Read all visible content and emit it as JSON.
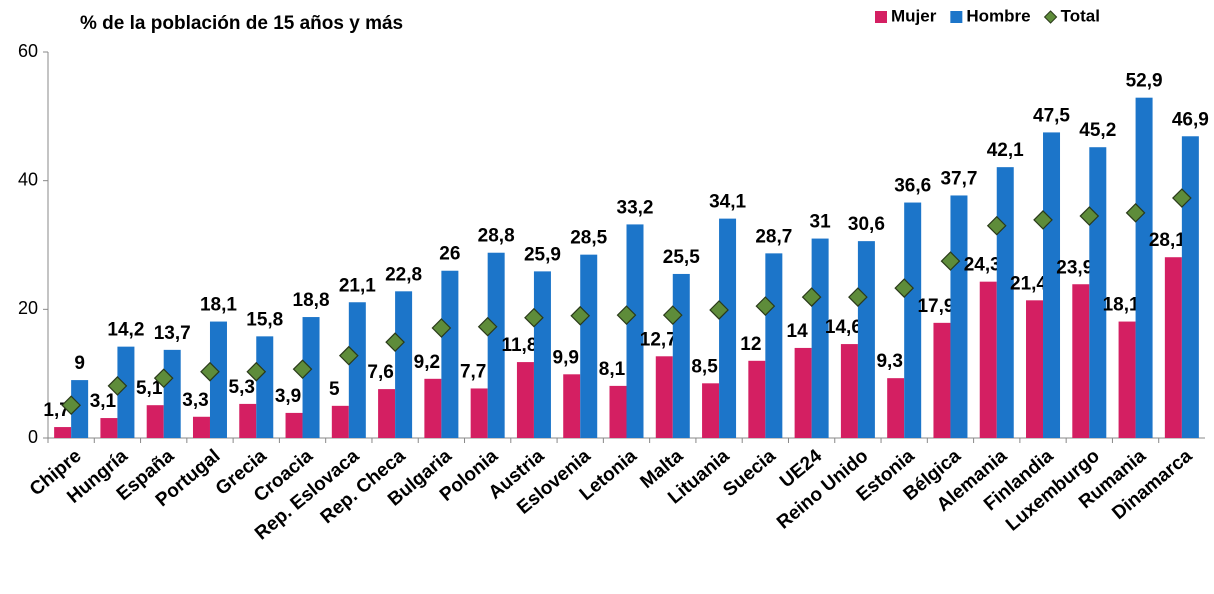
{
  "chart_data": {
    "type": "bar",
    "title": "% de la población de 15 años y más",
    "categories": [
      "Chipre",
      "Hungría",
      "España",
      "Portugal",
      "Grecia",
      "Croacia",
      "Rep. Eslovaca",
      "Rep. Checa",
      "Bulgaria",
      "Polonia",
      "Austria",
      "Eslovenia",
      "Letonia",
      "Malta",
      "Lituania",
      "Suecia",
      "UE24",
      "Reino Unido",
      "Estonia",
      "Bélgica",
      "Alemania",
      "Finlandia",
      "Luxemburgo",
      "Rumania",
      "Dinamarca"
    ],
    "series": [
      {
        "name": "Mujer",
        "color": "#d41f62",
        "mark": "bar",
        "values": [
          1.7,
          3.1,
          5.1,
          3.3,
          5.3,
          3.9,
          5,
          7.6,
          9.2,
          7.7,
          11.8,
          9.9,
          8.1,
          12.7,
          8.5,
          12,
          14,
          14.6,
          9.3,
          17.9,
          24.3,
          21.4,
          23.9,
          18.1,
          28.1
        ],
        "value_labels": [
          "1,7",
          "3,1",
          "5,1",
          "3,3",
          "5,3",
          "3,9",
          "5",
          "7,6",
          "9,2",
          "7,7",
          "11,8",
          "9,9",
          "8,1",
          "12,7",
          "8,5",
          "12",
          "14",
          "14,6",
          "9,3",
          "17,9",
          "24,3",
          "21,4",
          "23,9",
          "18,1",
          "28,1"
        ]
      },
      {
        "name": "Hombre",
        "color": "#1c75c9",
        "mark": "bar",
        "values": [
          9,
          14.2,
          13.7,
          18.1,
          15.8,
          18.8,
          21.1,
          22.8,
          26,
          28.8,
          25.9,
          28.5,
          33.2,
          25.5,
          34.1,
          28.7,
          31,
          30.6,
          36.6,
          37.7,
          42.1,
          47.5,
          45.2,
          52.9,
          46.9
        ],
        "value_labels": [
          "9",
          "14,2",
          "13,7",
          "18,1",
          "15,8",
          "18,8",
          "21,1",
          "22,8",
          "26",
          "28,8",
          "25,9",
          "28,5",
          "33,2",
          "25,5",
          "34,1",
          "28,7",
          "31",
          "30,6",
          "36,6",
          "37,7",
          "42,1",
          "47,5",
          "45,2",
          "52,9",
          "46,9"
        ]
      },
      {
        "name": "Total",
        "color": "#5e8c3a",
        "mark": "diamond",
        "values": [
          5.1,
          8.1,
          9.3,
          10.3,
          10.3,
          10.7,
          12.8,
          14.9,
          17.1,
          17.3,
          18.7,
          19,
          19.1,
          19.1,
          19.9,
          20.5,
          21.9,
          21.9,
          23.3,
          27.5,
          33,
          33.9,
          34.5,
          35,
          37.3
        ]
      }
    ],
    "ylim": [
      0,
      60
    ],
    "yticks": [
      0,
      20,
      40,
      60
    ],
    "grid": false,
    "legend": "top-right"
  }
}
